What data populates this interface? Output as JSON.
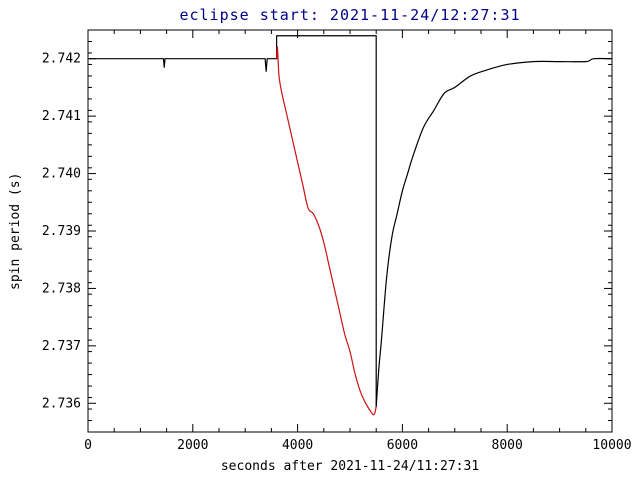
{
  "figure": {
    "background": "#ffffff"
  },
  "chart_data": {
    "type": "line",
    "title": "eclipse start: 2021-11-24/12:27:31",
    "xlabel": "seconds after 2021-11-24/11:27:31",
    "ylabel": "spin period (s)",
    "xlim": [
      0,
      10000
    ],
    "ylim": [
      2.7355,
      2.7425
    ],
    "grid": false,
    "legend": null,
    "x_major_ticks": [
      0,
      2000,
      4000,
      6000,
      8000,
      10000
    ],
    "x_tick_labels": [
      "0",
      "2000",
      "4000",
      "6000",
      "8000",
      "10000"
    ],
    "x_minor_step": 500,
    "y_major_ticks": [
      2.736,
      2.737,
      2.738,
      2.739,
      2.74,
      2.741,
      2.742
    ],
    "y_tick_labels": [
      "2.736",
      "2.737",
      "2.738",
      "2.739",
      "2.740",
      "2.741",
      "2.742"
    ],
    "y_minor_step": 0.0002,
    "colors": {
      "axis": "#000000",
      "title": "#00008b",
      "pre_eclipse": "#000000",
      "marker": "#000000",
      "eclipse_decay": "#cc1111",
      "recovery": "#000000"
    },
    "annotations": {
      "eclipse_start_x": 3600,
      "eclipse_end_x": 5500,
      "marker_top_y": 2.7424,
      "baseline_spin_period": 2.742,
      "minimum_spin_period": 2.7358
    },
    "series": [
      {
        "name": "pre-eclipse baseline",
        "color_key": "pre_eclipse",
        "smooth": false,
        "points": [
          [
            0,
            2.742
          ],
          [
            1440,
            2.742
          ],
          [
            1455,
            2.74185
          ],
          [
            1470,
            2.742
          ],
          [
            3380,
            2.742
          ],
          [
            3400,
            2.74178
          ],
          [
            3420,
            2.742
          ],
          [
            3600,
            2.742
          ]
        ]
      },
      {
        "name": "eclipse interval marker",
        "color_key": "marker",
        "smooth": false,
        "points": [
          [
            3600,
            2.742
          ],
          [
            3600,
            2.7424
          ],
          [
            5500,
            2.7424
          ],
          [
            5500,
            2.73595
          ]
        ]
      },
      {
        "name": "eclipse spin-down",
        "color_key": "eclipse_decay",
        "smooth": true,
        "points": [
          [
            3600,
            2.742
          ],
          [
            3615,
            2.7422
          ],
          [
            3645,
            2.7417
          ],
          [
            3700,
            2.7414
          ],
          [
            3800,
            2.741
          ],
          [
            3900,
            2.7406
          ],
          [
            4000,
            2.7402
          ],
          [
            4100,
            2.7398
          ],
          [
            4200,
            2.7394
          ],
          [
            4300,
            2.7393
          ],
          [
            4400,
            2.7391
          ],
          [
            4500,
            2.7388
          ],
          [
            4600,
            2.7384
          ],
          [
            4700,
            2.738
          ],
          [
            4800,
            2.7376
          ],
          [
            4900,
            2.7372
          ],
          [
            5000,
            2.7369
          ],
          [
            5100,
            2.7365
          ],
          [
            5200,
            2.7362
          ],
          [
            5300,
            2.736
          ],
          [
            5400,
            2.73585
          ],
          [
            5450,
            2.7358
          ],
          [
            5480,
            2.73585
          ],
          [
            5500,
            2.73595
          ]
        ]
      },
      {
        "name": "post-eclipse recovery",
        "color_key": "recovery",
        "smooth": true,
        "points": [
          [
            5500,
            2.73595
          ],
          [
            5550,
            2.7366
          ],
          [
            5600,
            2.7371
          ],
          [
            5700,
            2.7382
          ],
          [
            5800,
            2.7389
          ],
          [
            5900,
            2.7393
          ],
          [
            6000,
            2.7397
          ],
          [
            6100,
            2.74
          ],
          [
            6200,
            2.7403
          ],
          [
            6400,
            2.7408
          ],
          [
            6600,
            2.7411
          ],
          [
            6800,
            2.7414
          ],
          [
            7000,
            2.7415
          ],
          [
            7300,
            2.7417
          ],
          [
            7600,
            2.7418
          ],
          [
            8000,
            2.7419
          ],
          [
            8500,
            2.74195
          ],
          [
            9000,
            2.74195
          ],
          [
            9500,
            2.74195
          ],
          [
            9650,
            2.742
          ],
          [
            10000,
            2.742
          ]
        ]
      }
    ]
  }
}
